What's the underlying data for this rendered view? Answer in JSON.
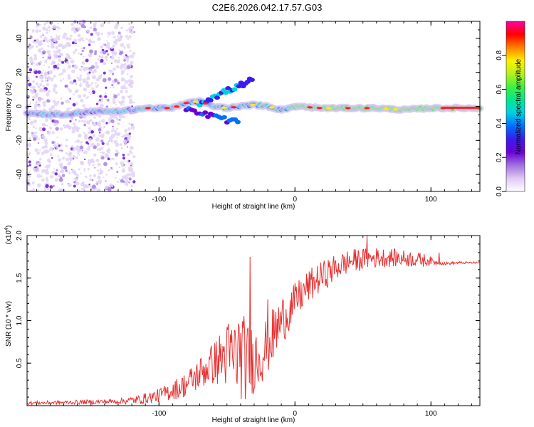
{
  "figure": {
    "title": "C2E6.2026.042.17.57.G03"
  },
  "chart_data": [
    {
      "type": "heatmap",
      "title": "C2E6.2026.042.17.57.G03",
      "xlabel": "Height of straight line (km)",
      "ylabel": "Frequency (Hz)",
      "xlim": [
        -197,
        136
      ],
      "ylim": [
        -50,
        50
      ],
      "x_ticks": [
        -100,
        0,
        100
      ],
      "x_tick_labels": [
        "-100",
        "0",
        "100"
      ],
      "y_ticks": [
        -40,
        -20,
        0,
        20,
        40
      ],
      "y_tick_labels": [
        "-40",
        "-20",
        "0",
        "20",
        "40"
      ],
      "colorbar": {
        "label": "Normalized spectral amplitude",
        "range": [
          0,
          1
        ],
        "ticks": [
          0.0,
          0.2,
          0.4,
          0.6,
          0.8
        ],
        "tick_labels": [
          "0.0",
          "0.2",
          "0.4",
          "0.6",
          "0.8"
        ],
        "colormap": [
          "#ffffff",
          "#e0c8f4",
          "#a070e0",
          "#6a00d8",
          "#3a1cf0",
          "#0070ff",
          "#00d0e0",
          "#00e890",
          "#40f040",
          "#b8f020",
          "#fff000",
          "#ff8000",
          "#ff0000",
          "#ff00a0"
        ]
      },
      "ridge": {
        "description_points_x": [
          -197,
          -170,
          -150,
          -130,
          -110,
          -90,
          -80,
          -70,
          -60,
          -50,
          -40,
          -30,
          -20,
          -10,
          0,
          20,
          40,
          60,
          80,
          100,
          120,
          136
        ],
        "frequency_hz": [
          -4,
          -5,
          -3,
          -3,
          -1,
          -1,
          2,
          3,
          0,
          -1,
          0,
          1,
          0,
          -2,
          0,
          -1,
          -1,
          -1,
          -2,
          -1,
          -1,
          -1
        ]
      },
      "colors": {
        "noise": "#d8c8f0",
        "dense": "#6010d0",
        "ridge_core": "#ff2020"
      }
    },
    {
      "type": "line",
      "xlabel": "Height of straight line (km)",
      "ylabel": "SNR (10 * v/v)",
      "scale_label": "(x10",
      "scale_exponent": "4",
      "xlim": [
        -197,
        136
      ],
      "ylim": [
        0,
        2.0
      ],
      "x_ticks": [
        -100,
        0,
        100
      ],
      "x_tick_labels": [
        "-100",
        "0",
        "100"
      ],
      "y_ticks": [
        0.5,
        1.0,
        1.5,
        2.0
      ],
      "y_tick_labels": [
        "0.5",
        "1.0",
        "1.5",
        "2.0"
      ],
      "series": [
        {
          "name": "SNR",
          "color": "#e83030",
          "envelope_x": [
            -197,
            -160,
            -130,
            -115,
            -100,
            -90,
            -80,
            -70,
            -60,
            -50,
            -45,
            -40,
            -35,
            -30,
            -25,
            -20,
            -15,
            -10,
            -5,
            0,
            10,
            20,
            30,
            40,
            50,
            60,
            70,
            80,
            90,
            100,
            105,
            110,
            120,
            136
          ],
          "envelope_y": [
            0.03,
            0.04,
            0.05,
            0.07,
            0.12,
            0.18,
            0.25,
            0.38,
            0.5,
            0.6,
            0.58,
            0.62,
            0.5,
            0.55,
            0.62,
            0.72,
            0.85,
            1.0,
            1.1,
            1.22,
            1.4,
            1.52,
            1.62,
            1.7,
            1.72,
            1.74,
            1.74,
            1.73,
            1.72,
            1.7,
            1.68,
            1.67,
            1.68,
            1.68
          ],
          "noise_amp_x": [
            -197,
            -130,
            -100,
            -80,
            -60,
            -50,
            -40,
            -30,
            -20,
            -10,
            0,
            20,
            40,
            60,
            80,
            95,
            105,
            136
          ],
          "noise_amp_y": [
            0.02,
            0.03,
            0.08,
            0.15,
            0.25,
            0.4,
            0.55,
            0.4,
            0.35,
            0.3,
            0.22,
            0.18,
            0.14,
            0.12,
            0.1,
            0.08,
            0.02,
            0.01
          ],
          "peaks": [
            {
              "x": -33,
              "y": 1.75
            },
            {
              "x": 53,
              "y": 2.0
            },
            {
              "x": -20,
              "y": 1.25
            },
            {
              "x": 106,
              "y": 1.8
            }
          ]
        }
      ]
    }
  ]
}
